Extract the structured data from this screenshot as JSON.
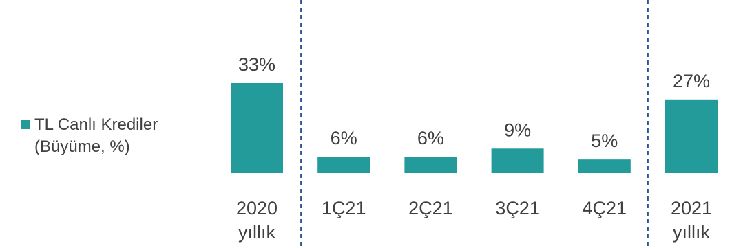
{
  "chart_data": {
    "type": "bar",
    "categories": [
      "2020 yıllık",
      "1Ç21",
      "2Ç21",
      "3Ç21",
      "4Ç21",
      "2021 yıllık"
    ],
    "category_lines": [
      [
        "2020",
        "yıllık"
      ],
      [
        "1Ç21"
      ],
      [
        "2Ç21"
      ],
      [
        "3Ç21"
      ],
      [
        "4Ç21"
      ],
      [
        "2021",
        "yıllık"
      ]
    ],
    "series": [
      {
        "name": "TL Canlı Krediler (Büyüme, %)",
        "values": [
          33,
          6,
          6,
          9,
          5,
          27
        ],
        "labels": [
          "33%",
          "6%",
          "6%",
          "9%",
          "5%",
          "27%"
        ]
      }
    ],
    "legend": {
      "line1": "TL Canlı Krediler",
      "line2": "(Büyüme, %)",
      "position": "left"
    },
    "separators_after_category": [
      0,
      4
    ],
    "colors": {
      "bar": "#239B9B",
      "text": "#404040",
      "separator": "#2F5597"
    },
    "grid": false
  }
}
